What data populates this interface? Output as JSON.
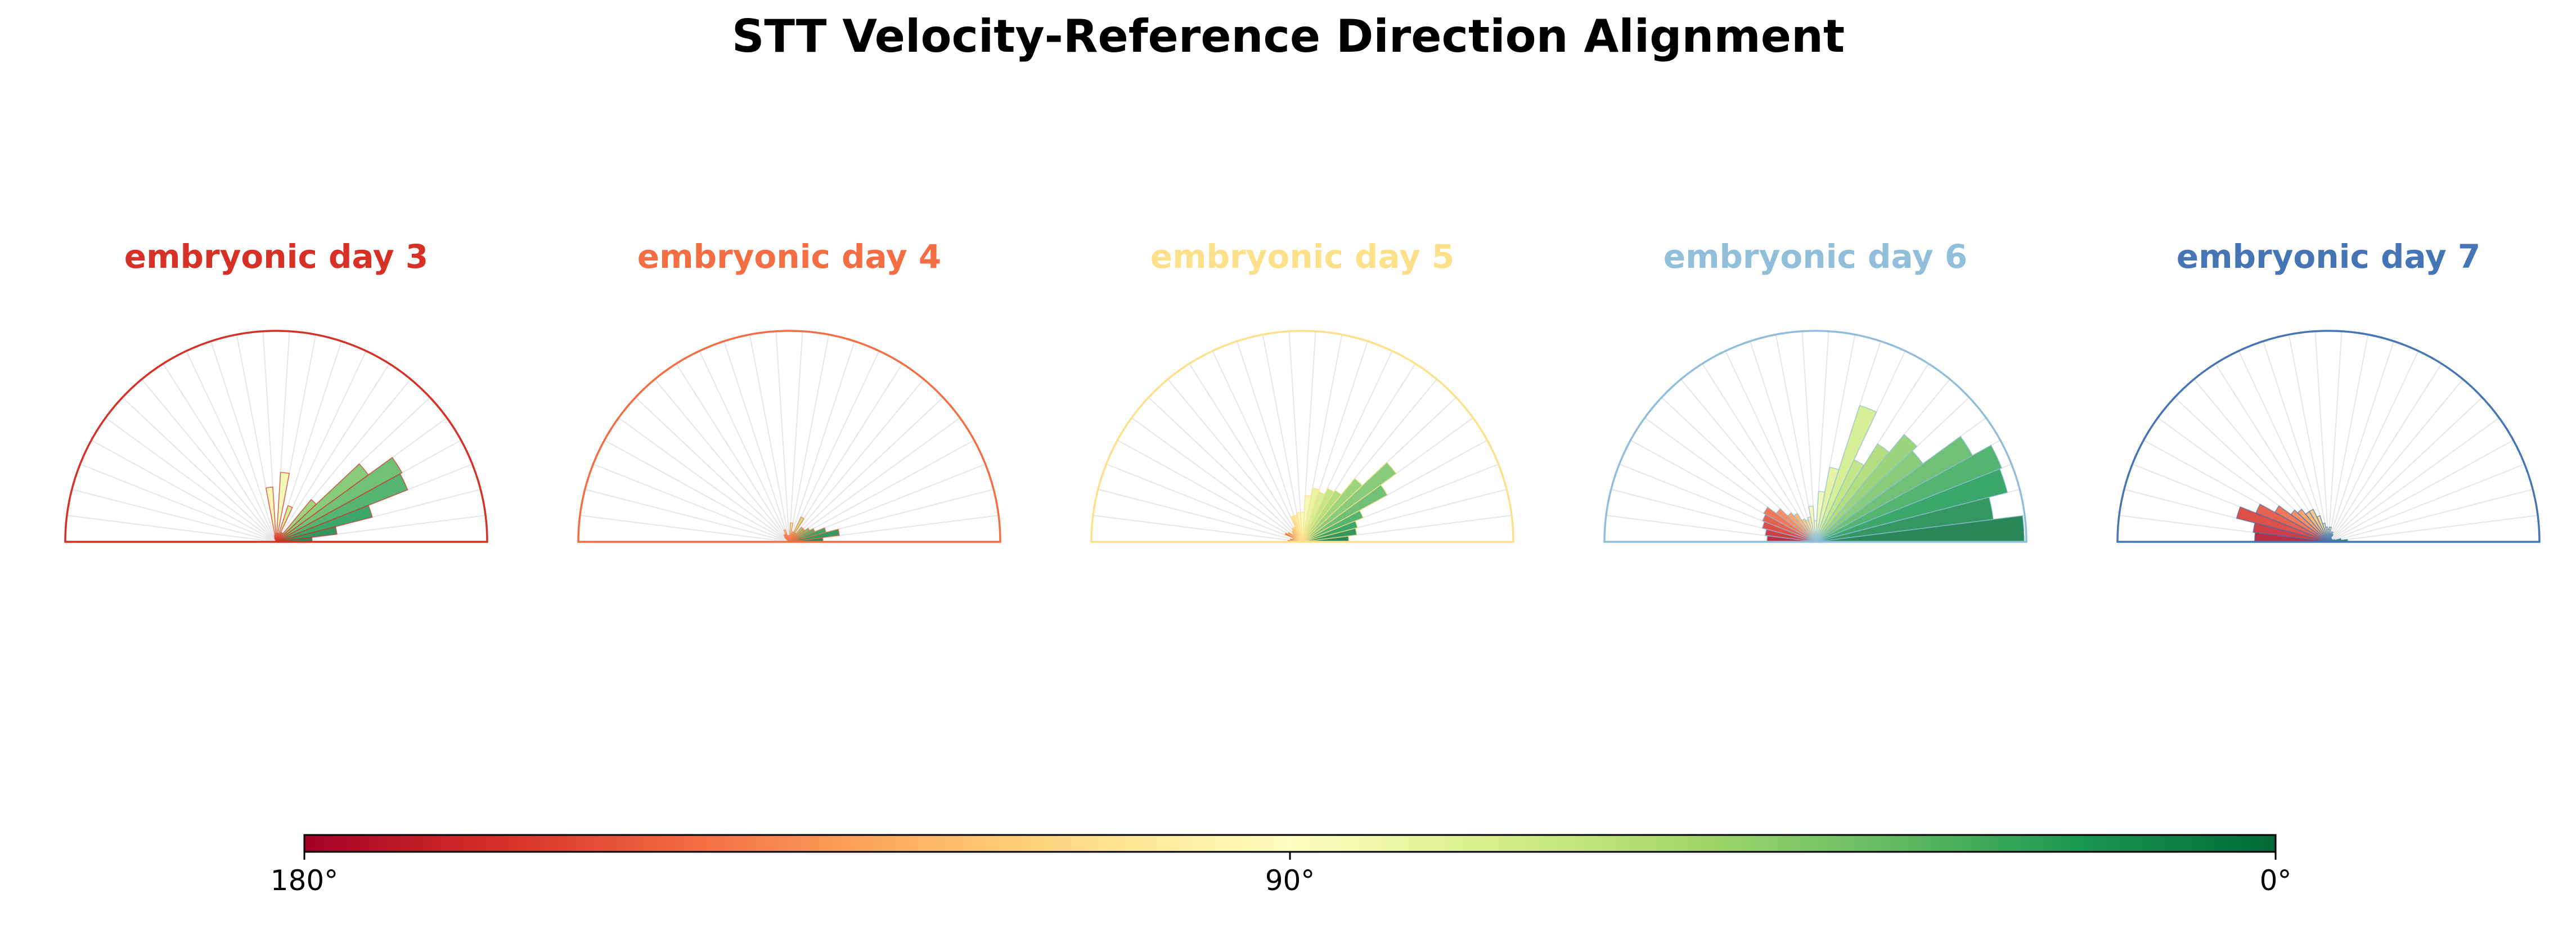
{
  "chart_data": {
    "type": "polar-rose-half",
    "title": "STT Velocity-Reference Direction Alignment",
    "angle_unit": "degrees",
    "angle_range": [
      0,
      180
    ],
    "bin_width_deg": 7.2,
    "value_unit": "relative frequency (radius as fraction of max)",
    "colorbar": {
      "orientation": "horizontal",
      "colormap": "RdYlGn (180° red → 90° pale yellow → 0° green)",
      "stops": [
        "#a50026",
        "#d73027",
        "#f46d43",
        "#fdae61",
        "#fee08b",
        "#ffffbf",
        "#d9ef8b",
        "#a6d96a",
        "#66bd63",
        "#1a9850",
        "#006837"
      ],
      "tick_labels": [
        "180°",
        "90°",
        "0°"
      ],
      "tick_values": [
        180,
        90,
        0
      ]
    },
    "panels": [
      {
        "label": "embryonic day 3",
        "color": "#d73027",
        "bars": [
          {
            "angle": 3.6,
            "r": 0.17
          },
          {
            "angle": 10.8,
            "r": 0.29
          },
          {
            "angle": 18,
            "r": 0.47
          },
          {
            "angle": 25.2,
            "r": 0.67
          },
          {
            "angle": 32.4,
            "r": 0.68
          },
          {
            "angle": 39.6,
            "r": 0.54
          },
          {
            "angle": 46.8,
            "r": 0.26
          },
          {
            "angle": 54,
            "r": 0.05
          },
          {
            "angle": 61.2,
            "r": 0.05
          },
          {
            "angle": 68.4,
            "r": 0.18
          },
          {
            "angle": 75.6,
            "r": 0.04
          },
          {
            "angle": 82.8,
            "r": 0.33
          },
          {
            "angle": 90,
            "r": 0.04
          },
          {
            "angle": 97.2,
            "r": 0.26
          },
          {
            "angle": 104.4,
            "r": 0.03
          },
          {
            "angle": 111.6,
            "r": 0.02
          }
        ]
      },
      {
        "label": "embryonic day 4",
        "color": "#f46d43",
        "bars": [
          {
            "angle": 3.6,
            "r": 0.16
          },
          {
            "angle": 10.8,
            "r": 0.24
          },
          {
            "angle": 18,
            "r": 0.18
          },
          {
            "angle": 25.2,
            "r": 0.13
          },
          {
            "angle": 32.4,
            "r": 0.11
          },
          {
            "angle": 39.6,
            "r": 0.09
          },
          {
            "angle": 46.8,
            "r": 0.09
          },
          {
            "angle": 54,
            "r": 0.05
          },
          {
            "angle": 61.2,
            "r": 0.13
          },
          {
            "angle": 68.4,
            "r": 0.05
          },
          {
            "angle": 75.6,
            "r": 0.04
          },
          {
            "angle": 82.8,
            "r": 0.09
          },
          {
            "angle": 90,
            "r": 0.03
          },
          {
            "angle": 97.2,
            "r": 0.03
          },
          {
            "angle": 104.4,
            "r": 0.03
          },
          {
            "angle": 111.6,
            "r": 0.06
          },
          {
            "angle": 118.8,
            "r": 0.04
          },
          {
            "angle": 126,
            "r": 0.04
          },
          {
            "angle": 133.2,
            "r": 0.03
          }
        ]
      },
      {
        "label": "embryonic day 5",
        "color": "#fee08b",
        "bars": [
          {
            "angle": 3.6,
            "r": 0.22
          },
          {
            "angle": 10.8,
            "r": 0.26
          },
          {
            "angle": 18,
            "r": 0.27
          },
          {
            "angle": 25.2,
            "r": 0.31
          },
          {
            "angle": 32.4,
            "r": 0.46
          },
          {
            "angle": 39.6,
            "r": 0.55
          },
          {
            "angle": 46.8,
            "r": 0.39
          },
          {
            "angle": 54,
            "r": 0.29
          },
          {
            "angle": 61.2,
            "r": 0.28
          },
          {
            "angle": 68.4,
            "r": 0.25
          },
          {
            "angle": 75.6,
            "r": 0.26
          },
          {
            "angle": 82.8,
            "r": 0.22
          },
          {
            "angle": 90,
            "r": 0.14
          },
          {
            "angle": 97.2,
            "r": 0.14
          },
          {
            "angle": 104.4,
            "r": 0.13
          },
          {
            "angle": 111.6,
            "r": 0.13
          },
          {
            "angle": 118.8,
            "r": 0.08
          },
          {
            "angle": 126,
            "r": 0.08
          },
          {
            "angle": 133.2,
            "r": 0.07
          },
          {
            "angle": 140.4,
            "r": 0.06
          },
          {
            "angle": 147.6,
            "r": 0.08
          },
          {
            "angle": 154.8,
            "r": 0.09
          },
          {
            "angle": 162,
            "r": 0.05
          },
          {
            "angle": 169.2,
            "r": 0.06
          },
          {
            "angle": 176.4,
            "r": 0.07
          }
        ]
      },
      {
        "label": "embryonic day 6",
        "color": "#91bfdb",
        "bars": [
          {
            "angle": 3.6,
            "r": 0.99
          },
          {
            "angle": 10.8,
            "r": 0.85
          },
          {
            "angle": 18,
            "r": 0.94
          },
          {
            "angle": 25.2,
            "r": 0.95
          },
          {
            "angle": 32.4,
            "r": 0.85
          },
          {
            "angle": 39.6,
            "r": 0.63
          },
          {
            "angle": 46.8,
            "r": 0.66
          },
          {
            "angle": 54,
            "r": 0.55
          },
          {
            "angle": 61.2,
            "r": 0.43
          },
          {
            "angle": 68.4,
            "r": 0.68
          },
          {
            "angle": 75.6,
            "r": 0.36
          },
          {
            "angle": 82.8,
            "r": 0.24
          },
          {
            "angle": 90,
            "r": 0.1
          },
          {
            "angle": 97.2,
            "r": 0.17
          },
          {
            "angle": 104.4,
            "r": 0.12
          },
          {
            "angle": 111.6,
            "r": 0.11
          },
          {
            "angle": 118.8,
            "r": 0.12
          },
          {
            "angle": 126,
            "r": 0.16
          },
          {
            "angle": 133.2,
            "r": 0.18
          },
          {
            "angle": 140.4,
            "r": 0.23
          },
          {
            "angle": 147.6,
            "r": 0.28
          },
          {
            "angle": 154.8,
            "r": 0.27
          },
          {
            "angle": 162,
            "r": 0.26
          },
          {
            "angle": 169.2,
            "r": 0.24
          },
          {
            "angle": 176.4,
            "r": 0.23
          }
        ]
      },
      {
        "label": "embryonic day 7",
        "color": "#4575b4",
        "bars": [
          {
            "angle": 3.6,
            "r": 0.09
          },
          {
            "angle": 10.8,
            "r": 0.06
          },
          {
            "angle": 18,
            "r": 0.03
          },
          {
            "angle": 25.2,
            "r": 0.02
          },
          {
            "angle": 32.4,
            "r": 0.02
          },
          {
            "angle": 39.6,
            "r": 0.02
          },
          {
            "angle": 46.8,
            "r": 0.02
          },
          {
            "angle": 54,
            "r": 0.02
          },
          {
            "angle": 61.2,
            "r": 0.04
          },
          {
            "angle": 68.4,
            "r": 0.05
          },
          {
            "angle": 75.6,
            "r": 0.04
          },
          {
            "angle": 82.8,
            "r": 0.07
          },
          {
            "angle": 90,
            "r": 0.06
          },
          {
            "angle": 97.2,
            "r": 0.07
          },
          {
            "angle": 104.4,
            "r": 0.09
          },
          {
            "angle": 111.6,
            "r": 0.13
          },
          {
            "angle": 118.8,
            "r": 0.17
          },
          {
            "angle": 126,
            "r": 0.17
          },
          {
            "angle": 133.2,
            "r": 0.2
          },
          {
            "angle": 140.4,
            "r": 0.22
          },
          {
            "angle": 147.6,
            "r": 0.29
          },
          {
            "angle": 154.8,
            "r": 0.37
          },
          {
            "angle": 162,
            "r": 0.45
          },
          {
            "angle": 169.2,
            "r": 0.36
          },
          {
            "angle": 176.4,
            "r": 0.35
          }
        ]
      }
    ]
  }
}
